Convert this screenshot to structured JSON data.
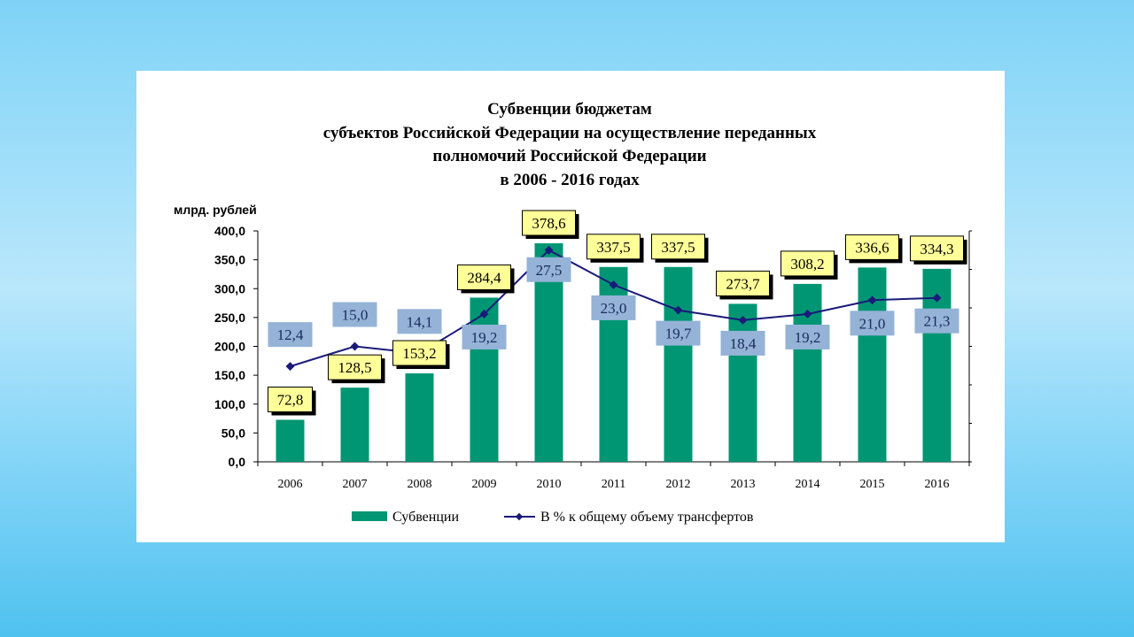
{
  "chart_data": {
    "type": "bar",
    "title_lines": [
      "Субвенции  бюджетам",
      "субъектов Российской Федерации  на осуществление переданных",
      "полномочий Российской Федерации",
      "в 2006 - 2016 годах"
    ],
    "ylabel": "млрд. рублей",
    "ylim": [
      0,
      400
    ],
    "yticks": [
      "0,0",
      "50,0",
      "100,0",
      "150,0",
      "200,0",
      "250,0",
      "300,0",
      "350,0",
      "400,0"
    ],
    "y2lim": [
      0,
      30
    ],
    "categories": [
      "2006",
      "2007",
      "2008",
      "2009",
      "2010",
      "2011",
      "2012",
      "2013",
      "2014",
      "2015",
      "2016"
    ],
    "series": [
      {
        "name": "Субвенции",
        "kind": "bar",
        "color": "#009673",
        "values": [
          72.8,
          128.5,
          153.2,
          284.4,
          378.6,
          337.5,
          337.5,
          273.7,
          308.2,
          336.6,
          334.3
        ],
        "labels": [
          "72,8",
          "128,5",
          "153,2",
          "284,4",
          "378,6",
          "337,5",
          "337,5",
          "273,7",
          "308,2",
          "336,6",
          "334,3"
        ]
      },
      {
        "name": "В % к общему объему трансфертов",
        "kind": "line",
        "axis": "secondary",
        "color": "#1a1a7a",
        "values": [
          12.4,
          15.0,
          14.1,
          19.2,
          27.5,
          23.0,
          19.7,
          18.4,
          19.2,
          21.0,
          21.3
        ],
        "labels": [
          "12,4",
          "15,0",
          "14,1",
          "19,2",
          "27,5",
          "23,0",
          "19,7",
          "18,4",
          "19,2",
          "21,0",
          "21,3"
        ]
      }
    ],
    "legend_position": "bottom",
    "label_box_colors": {
      "bar": "#ffff99",
      "line": "#95b3d7"
    }
  }
}
